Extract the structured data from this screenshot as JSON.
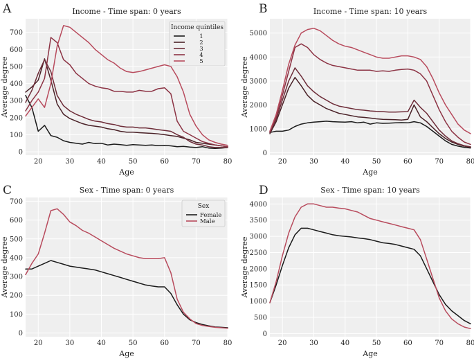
{
  "chart_data": [
    {
      "panel": "A",
      "type": "line",
      "title": "Income - Time span: 0 years",
      "xlabel": "Age",
      "ylabel": "Average degree",
      "xlim": [
        16,
        80
      ],
      "ylim": [
        -20,
        780
      ],
      "xticks": [
        "20",
        "30",
        "40",
        "50",
        "60",
        "70",
        "80"
      ],
      "yticks": [
        "0",
        "100",
        "200",
        "300",
        "400",
        "500",
        "600",
        "700"
      ],
      "grid": true,
      "legend": {
        "title": "Income quintiles",
        "position": "top-right"
      },
      "x": [
        16,
        18,
        20,
        22,
        24,
        26,
        28,
        30,
        32,
        34,
        36,
        38,
        40,
        42,
        44,
        46,
        48,
        50,
        52,
        54,
        56,
        58,
        60,
        62,
        64,
        66,
        68,
        70,
        72,
        74,
        76,
        78,
        80
      ],
      "series": [
        {
          "name": "1",
          "color": "#1a1a1a",
          "values": [
            330,
            260,
            120,
            155,
            95,
            85,
            65,
            55,
            50,
            45,
            55,
            48,
            50,
            40,
            45,
            42,
            38,
            42,
            40,
            38,
            40,
            36,
            38,
            35,
            30,
            32,
            28,
            25,
            30,
            22,
            20,
            22,
            25
          ]
        },
        {
          "name": "2",
          "color": "#4a2228",
          "values": [
            350,
            380,
            420,
            545,
            420,
            280,
            220,
            195,
            180,
            165,
            155,
            150,
            145,
            135,
            130,
            120,
            115,
            115,
            112,
            110,
            108,
            105,
            100,
            95,
            90,
            80,
            70,
            55,
            50,
            45,
            40,
            35,
            30
          ]
        },
        {
          "name": "3",
          "color": "#6d2c38",
          "values": [
            290,
            360,
            460,
            540,
            470,
            330,
            270,
            240,
            220,
            205,
            190,
            180,
            175,
            165,
            160,
            150,
            145,
            145,
            140,
            140,
            135,
            130,
            125,
            120,
            100,
            85,
            60,
            45,
            40,
            30,
            25,
            25,
            25
          ]
        },
        {
          "name": "4",
          "color": "#8c3344",
          "values": [
            240,
            300,
            350,
            430,
            670,
            640,
            540,
            510,
            460,
            430,
            400,
            385,
            375,
            370,
            355,
            355,
            350,
            350,
            360,
            355,
            355,
            370,
            375,
            340,
            180,
            120,
            100,
            80,
            60,
            50,
            40,
            35,
            30
          ]
        },
        {
          "name": "5",
          "color": "#b84b5d",
          "values": [
            210,
            260,
            310,
            260,
            400,
            620,
            740,
            730,
            700,
            670,
            640,
            600,
            570,
            540,
            520,
            490,
            470,
            465,
            470,
            480,
            490,
            500,
            510,
            500,
            440,
            350,
            220,
            150,
            100,
            70,
            55,
            45,
            38
          ]
        }
      ]
    },
    {
      "panel": "B",
      "type": "line",
      "title": "Income - Time span: 10 years",
      "xlabel": "Age",
      "ylabel": "Average degree",
      "xlim": [
        16,
        80
      ],
      "ylim": [
        -100,
        5600
      ],
      "xticks": [
        "20",
        "30",
        "40",
        "50",
        "60",
        "70",
        "80"
      ],
      "yticks": [
        "0",
        "1000",
        "2000",
        "3000",
        "4000",
        "5000"
      ],
      "grid": true,
      "x": [
        16,
        18,
        20,
        22,
        24,
        26,
        28,
        30,
        32,
        34,
        36,
        38,
        40,
        42,
        44,
        46,
        48,
        50,
        52,
        54,
        56,
        58,
        60,
        62,
        64,
        66,
        68,
        70,
        72,
        74,
        76,
        78,
        80
      ],
      "series": [
        {
          "name": "1",
          "color": "#1a1a1a",
          "values": [
            850,
            900,
            900,
            950,
            1100,
            1200,
            1250,
            1280,
            1300,
            1320,
            1300,
            1290,
            1280,
            1300,
            1250,
            1280,
            1200,
            1250,
            1230,
            1240,
            1250,
            1260,
            1250,
            1300,
            1250,
            1100,
            900,
            700,
            500,
            350,
            280,
            230,
            200
          ]
        },
        {
          "name": "2",
          "color": "#4a2228",
          "values": [
            800,
            1300,
            2000,
            2700,
            3150,
            2800,
            2400,
            2150,
            2000,
            1850,
            1750,
            1650,
            1600,
            1550,
            1500,
            1480,
            1450,
            1420,
            1400,
            1390,
            1380,
            1370,
            1400,
            2000,
            1500,
            1300,
            1050,
            800,
            600,
            450,
            350,
            280,
            230
          ]
        },
        {
          "name": "3",
          "color": "#6d2c38",
          "values": [
            850,
            1400,
            2200,
            3000,
            3550,
            3200,
            2800,
            2550,
            2350,
            2200,
            2050,
            1950,
            1900,
            1850,
            1800,
            1780,
            1750,
            1730,
            1720,
            1700,
            1700,
            1710,
            1720,
            2200,
            1900,
            1650,
            1300,
            950,
            700,
            500,
            380,
            300,
            250
          ]
        },
        {
          "name": "4",
          "color": "#8c3344",
          "values": [
            900,
            1500,
            2400,
            3400,
            4400,
            4550,
            4400,
            4100,
            3900,
            3750,
            3650,
            3600,
            3550,
            3500,
            3450,
            3450,
            3450,
            3400,
            3420,
            3400,
            3450,
            3480,
            3500,
            3450,
            3300,
            3000,
            2400,
            1800,
            1300,
            900,
            650,
            450,
            350
          ]
        },
        {
          "name": "5",
          "color": "#b84b5d",
          "values": [
            900,
            1600,
            2600,
            3700,
            4500,
            5000,
            5150,
            5200,
            5100,
            4900,
            4700,
            4550,
            4450,
            4400,
            4300,
            4200,
            4100,
            4000,
            3950,
            3950,
            4000,
            4050,
            4050,
            4000,
            3900,
            3600,
            3100,
            2500,
            2000,
            1600,
            1200,
            950,
            800
          ]
        }
      ]
    },
    {
      "panel": "C",
      "type": "line",
      "title": "Sex - Time span: 0 years",
      "xlabel": "Age",
      "ylabel": "Average degree",
      "xlim": [
        16,
        80
      ],
      "ylim": [
        -20,
        720
      ],
      "xticks": [
        "20",
        "30",
        "40",
        "50",
        "60",
        "70",
        "80"
      ],
      "yticks": [
        "0",
        "100",
        "200",
        "300",
        "400",
        "500",
        "600",
        "700"
      ],
      "grid": true,
      "legend": {
        "title": "Sex",
        "position": "top-right"
      },
      "x": [
        16,
        18,
        20,
        22,
        24,
        26,
        28,
        30,
        32,
        34,
        36,
        38,
        40,
        42,
        44,
        46,
        48,
        50,
        52,
        54,
        56,
        58,
        60,
        62,
        64,
        66,
        68,
        70,
        72,
        74,
        76,
        78,
        80
      ],
      "series": [
        {
          "name": "Female",
          "color": "#1a1a1a",
          "values": [
            340,
            340,
            355,
            370,
            385,
            375,
            365,
            355,
            350,
            345,
            340,
            335,
            325,
            315,
            305,
            295,
            285,
            275,
            265,
            255,
            250,
            245,
            245,
            210,
            150,
            100,
            70,
            55,
            45,
            38,
            32,
            30,
            28
          ]
        },
        {
          "name": "Male",
          "color": "#b84b5d",
          "values": [
            310,
            370,
            420,
            530,
            650,
            660,
            630,
            590,
            570,
            545,
            530,
            510,
            490,
            470,
            450,
            435,
            420,
            410,
            400,
            395,
            395,
            395,
            400,
            320,
            180,
            110,
            75,
            50,
            40,
            35,
            30,
            28,
            25
          ]
        }
      ]
    },
    {
      "panel": "D",
      "type": "line",
      "title": "Sex - Time span: 10 years",
      "xlabel": "Age",
      "ylabel": "Average degree",
      "xlim": [
        16,
        80
      ],
      "ylim": [
        -100,
        4200
      ],
      "xticks": [
        "20",
        "30",
        "40",
        "50",
        "60",
        "70",
        "80"
      ],
      "yticks": [
        "0",
        "500",
        "1000",
        "1500",
        "2000",
        "2500",
        "3000",
        "3500",
        "4000"
      ],
      "grid": true,
      "x": [
        16,
        18,
        20,
        22,
        24,
        26,
        28,
        30,
        32,
        34,
        36,
        38,
        40,
        42,
        44,
        46,
        48,
        50,
        52,
        54,
        56,
        58,
        60,
        62,
        64,
        66,
        68,
        70,
        72,
        74,
        76,
        78,
        80
      ],
      "series": [
        {
          "name": "Female",
          "color": "#1a1a1a",
          "values": [
            950,
            1500,
            2100,
            2650,
            3050,
            3250,
            3250,
            3200,
            3150,
            3100,
            3050,
            3020,
            3000,
            2980,
            2950,
            2930,
            2900,
            2850,
            2800,
            2780,
            2750,
            2700,
            2650,
            2600,
            2400,
            2000,
            1600,
            1200,
            900,
            700,
            550,
            400,
            300
          ]
        },
        {
          "name": "Male",
          "color": "#b84b5d",
          "values": [
            950,
            1600,
            2400,
            3100,
            3600,
            3900,
            4000,
            4000,
            3950,
            3900,
            3900,
            3870,
            3850,
            3800,
            3750,
            3650,
            3550,
            3500,
            3450,
            3400,
            3350,
            3300,
            3250,
            3200,
            2900,
            2300,
            1700,
            1100,
            700,
            450,
            300,
            200,
            150
          ]
        }
      ]
    }
  ]
}
